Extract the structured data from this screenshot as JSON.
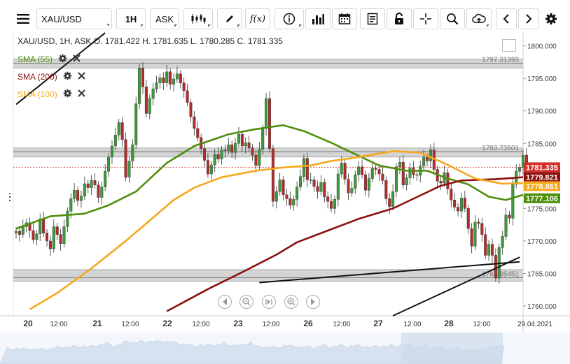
{
  "toolbar": {
    "symbol": "XAU/USD",
    "timeframe": "1H",
    "price_side": "ASK",
    "fx_label": "f(x)"
  },
  "header": {
    "ohlc": "XAU/USD, 1H, ASK   O. 1781.422 H. 1781.635 L. 1780.285 C. 1781.335"
  },
  "indicators": [
    {
      "label": "SMA (55)",
      "color": "#4e8f0c"
    },
    {
      "label": "SMA (200)",
      "color": "#8b1010"
    },
    {
      "label": "SMA (100)",
      "color": "#f5a81b"
    }
  ],
  "chart_data": {
    "type": "candlestick",
    "ylim": [
      1758.5,
      1802
    ],
    "y_ticks": [
      "1800.000",
      "1795.000",
      "1790.000",
      "1785.000",
      "1780.000",
      "1775.000",
      "1770.000",
      "1765.000",
      "1760.000"
    ],
    "x_labels": [
      "20",
      "12:00",
      "21",
      "12:00",
      "22",
      "12:00",
      "23",
      "12:00",
      "26",
      "12:00",
      "27",
      "12:00",
      "28",
      "12:00",
      "29.04.2021"
    ],
    "last_price": 1781.335,
    "price_tags": [
      {
        "label": "1781.335",
        "value": 1781.335,
        "color": "#d2302a"
      },
      {
        "label": "1779.821",
        "value": 1779.821,
        "color": "#8b1010"
      },
      {
        "label": "1778.861",
        "value": 1778.861,
        "color": "#f5a81b"
      },
      {
        "label": "1777.106",
        "value": 1777.106,
        "color": "#4e8f0c"
      }
    ],
    "zones": [
      {
        "label": "1797.31393",
        "value": 1797.31393,
        "low": 1796.6,
        "high": 1798.0
      },
      {
        "label": "1783.73501",
        "value": 1783.73501,
        "low": 1782.9,
        "high": 1784.3
      },
      {
        "label": "1764.35451",
        "value": 1764.35451,
        "low": 1763.8,
        "high": 1765.6
      }
    ],
    "trendlines": [
      {
        "name": "upper trend",
        "points": [
          [
            0,
            1791.0
          ],
          [
            26,
            1802.0
          ]
        ]
      },
      {
        "name": "lower trend",
        "points": [
          [
            71,
            1763.6
          ],
          [
            147,
            1766.8
          ]
        ]
      },
      {
        "name": "bottom trend",
        "points": [
          [
            110,
            1758.5
          ],
          [
            147,
            1767.5
          ]
        ]
      }
    ],
    "series": [
      {
        "name": "SMA (55)",
        "color": "#4e8f0c",
        "values": [
          [
            0,
            1771.9
          ],
          [
            10,
            1773.8
          ],
          [
            20,
            1774.2
          ],
          [
            27,
            1775.5
          ],
          [
            35,
            1777.6
          ],
          [
            44,
            1782.0
          ],
          [
            52,
            1784.6
          ],
          [
            62,
            1786.4
          ],
          [
            70,
            1787.2
          ],
          [
            78,
            1787.8
          ],
          [
            84,
            1786.9
          ],
          [
            92,
            1785.1
          ],
          [
            98,
            1783.6
          ],
          [
            106,
            1781.6
          ],
          [
            114,
            1780.8
          ],
          [
            120,
            1780.8
          ],
          [
            126,
            1779.6
          ],
          [
            132,
            1778.7
          ],
          [
            138,
            1776.8
          ],
          [
            143,
            1776.3
          ],
          [
            148,
            1777.1
          ]
        ]
      },
      {
        "name": "SMA (200)",
        "color": "#8b1010",
        "values": [
          [
            44,
            1759.2
          ],
          [
            56,
            1762.6
          ],
          [
            66,
            1765.2
          ],
          [
            76,
            1767.9
          ],
          [
            82,
            1769.8
          ],
          [
            90,
            1771.4
          ],
          [
            100,
            1773.4
          ],
          [
            110,
            1775.0
          ],
          [
            118,
            1777.0
          ],
          [
            124,
            1778.5
          ],
          [
            130,
            1779.3
          ],
          [
            140,
            1779.5
          ],
          [
            148,
            1779.8
          ]
        ]
      },
      {
        "name": "SMA (100)",
        "color": "#f5a81b",
        "values": [
          [
            4,
            1759.5
          ],
          [
            12,
            1762.0
          ],
          [
            22,
            1765.8
          ],
          [
            32,
            1770.0
          ],
          [
            40,
            1773.6
          ],
          [
            46,
            1776.3
          ],
          [
            52,
            1778.2
          ],
          [
            60,
            1779.8
          ],
          [
            70,
            1780.8
          ],
          [
            78,
            1781.3
          ],
          [
            86,
            1781.6
          ],
          [
            92,
            1782.3
          ],
          [
            100,
            1782.9
          ],
          [
            110,
            1783.8
          ],
          [
            118,
            1783.6
          ],
          [
            126,
            1781.7
          ],
          [
            134,
            1779.6
          ],
          [
            142,
            1778.8
          ],
          [
            148,
            1778.9
          ]
        ]
      }
    ],
    "candles_close": [
      1771.5,
      1771.0,
      1772.2,
      1772.8,
      1771.6,
      1770.2,
      1771.1,
      1773.4,
      1771.2,
      1770.0,
      1768.8,
      1772.2,
      1771.0,
      1769.6,
      1772.2,
      1774.6,
      1776.5,
      1777.8,
      1776.2,
      1776.9,
      1778.8,
      1778.2,
      1779.3,
      1778.6,
      1776.7,
      1778.3,
      1780.7,
      1782.9,
      1784.6,
      1786.3,
      1788.2,
      1785.6,
      1779.8,
      1782.3,
      1784.8,
      1791.1,
      1796.6,
      1793.7,
      1789.6,
      1791.9,
      1793.4,
      1794.3,
      1795.1,
      1794.3,
      1796.0,
      1794.1,
      1794.9,
      1795.7,
      1794.3,
      1793.1,
      1791.3,
      1789.1,
      1787.3,
      1785.9,
      1784.2,
      1782.4,
      1780.3,
      1781.7,
      1783.3,
      1782.6,
      1784.0,
      1783.9,
      1784.8,
      1783.6,
      1785.0,
      1786.4,
      1784.6,
      1785.1,
      1784.3,
      1783.2,
      1781.6,
      1784.1,
      1787.3,
      1791.9,
      1784.2,
      1776.1,
      1777.6,
      1779.4,
      1777.1,
      1776.5,
      1775.5,
      1776.4,
      1778.3,
      1779.9,
      1782.7,
      1779.4,
      1779.4,
      1778.4,
      1777.6,
      1779.0,
      1776.8,
      1776.1,
      1775.0,
      1776.4,
      1780.3,
      1782.0,
      1779.5,
      1777.4,
      1778.1,
      1780.2,
      1781.4,
      1780.2,
      1777.8,
      1779.6,
      1781.2,
      1781.0,
      1780.3,
      1779.3,
      1776.5,
      1775.3,
      1777.6,
      1781.4,
      1782.1,
      1778.6,
      1779.7,
      1781.2,
      1780.2,
      1780.1,
      1781.5,
      1782.9,
      1782.3,
      1784.0,
      1781.0,
      1779.2,
      1778.9,
      1780.5,
      1778.0,
      1776.3,
      1775.2,
      1774.6,
      1776.6,
      1775.0,
      1771.9,
      1769.2,
      1772.9,
      1772.7,
      1771.0,
      1767.8,
      1769.5,
      1767.8,
      1764.3,
      1769.0,
      1770.7,
      1774.0,
      1773.5,
      1778.7,
      1780.7,
      1781.3,
      1783.2,
      1781.3
    ]
  }
}
